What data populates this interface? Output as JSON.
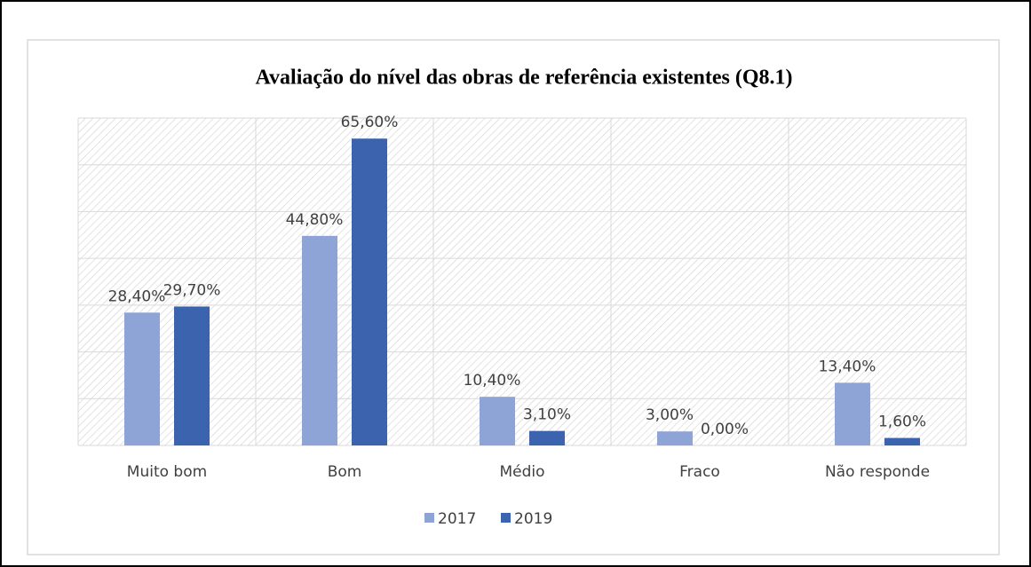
{
  "chart_data": {
    "type": "bar",
    "title": "Avaliação do nível das obras de referência existentes (Q8.1)",
    "categories": [
      "Muito bom",
      "Bom",
      "Médio",
      "Fraco",
      "Não responde"
    ],
    "series": [
      {
        "name": "2017",
        "color": "#8fa4d6",
        "values": [
          28.4,
          44.8,
          10.4,
          3.0,
          13.4
        ],
        "value_labels": [
          "28,40%",
          "44,80%",
          "10,40%",
          "3,00%",
          "13,40%"
        ]
      },
      {
        "name": "2019",
        "color": "#3c63ad",
        "values": [
          29.7,
          65.6,
          3.1,
          0.0,
          1.6
        ],
        "value_labels": [
          "29,70%",
          "65,60%",
          "3,10%",
          "0,00%",
          "1,60%"
        ]
      }
    ],
    "ylim": [
      0,
      70
    ],
    "yticks": [
      0,
      10,
      20,
      30,
      40,
      50,
      60,
      70
    ],
    "grid": true,
    "legend": "bottom"
  }
}
